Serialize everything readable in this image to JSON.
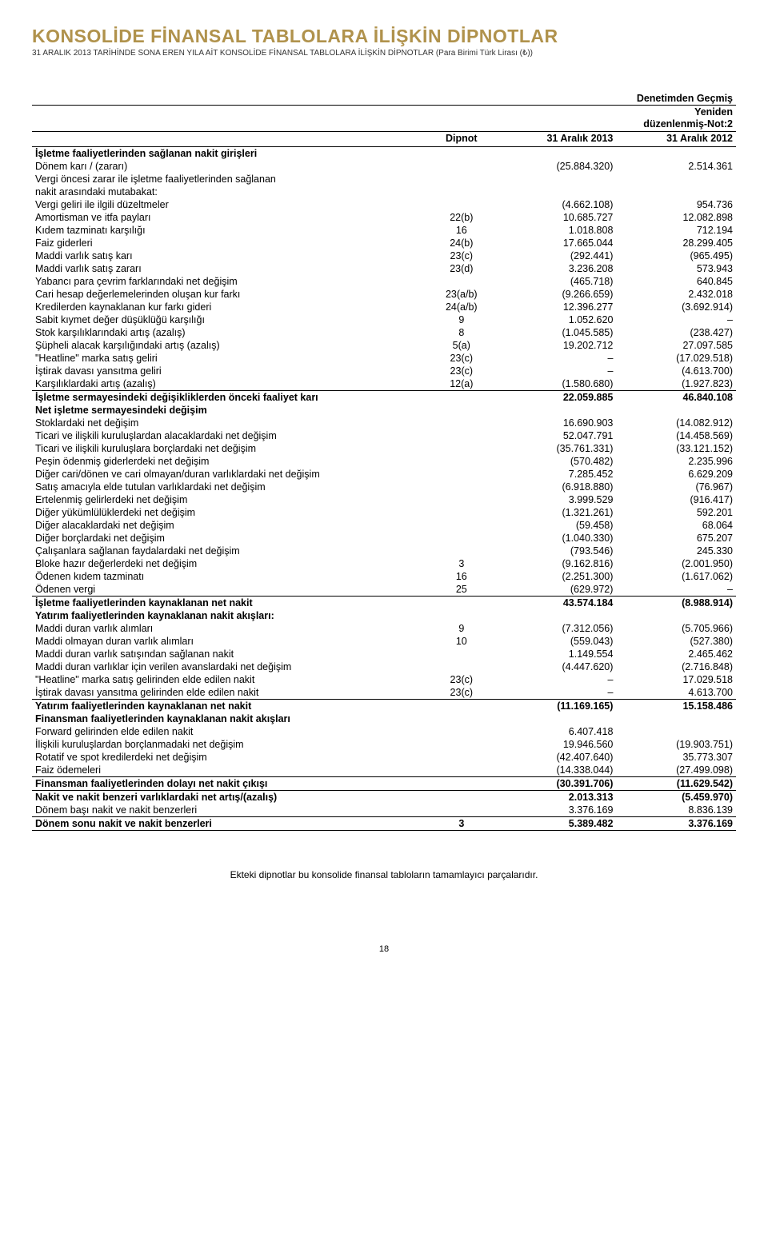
{
  "header": {
    "title": "KONSOLİDE FİNANSAL TABLOLARA İLİŞKİN DİPNOTLAR",
    "subtitle": "31 ARALIK 2013 TARİHİNDE SONA EREN YILA AİT KONSOLİDE FİNANSAL TABLOLARA İLİŞKİN DİPNOTLAR (Para Birimi Türk Lirası (₺))"
  },
  "columns": {
    "audit": "Denetimden Geçmiş",
    "restated": "Yeniden\ndüzenlenmiş-Not:2",
    "note": "Dipnot",
    "y2013": "31 Aralık 2013",
    "y2012": "31 Aralık 2012"
  },
  "rows": [
    {
      "label": "İşletme faaliyetlerinden sağlanan nakit girişleri",
      "section": true
    },
    {
      "label": "Dönem karı / (zararı)",
      "note": "",
      "v1": "(25.884.320)",
      "v2": "2.514.361"
    },
    {
      "label": "Vergi öncesi zarar ile işletme faaliyetlerinden sağlanan",
      "note": "",
      "v1": "",
      "v2": ""
    },
    {
      "label": "nakit arasındaki mutabakat:",
      "note": "",
      "v1": "",
      "v2": ""
    },
    {
      "label": "Vergi geliri ile ilgili düzeltmeler",
      "note": "",
      "v1": "(4.662.108)",
      "v2": "954.736"
    },
    {
      "label": "Amortisman ve itfa payları",
      "note": "22(b)",
      "v1": "10.685.727",
      "v2": "12.082.898"
    },
    {
      "label": "Kıdem tazminatı karşılığı",
      "note": "16",
      "v1": "1.018.808",
      "v2": "712.194"
    },
    {
      "label": "Faiz giderleri",
      "note": "24(b)",
      "v1": "17.665.044",
      "v2": "28.299.405"
    },
    {
      "label": "Maddi varlık satış karı",
      "note": "23(c)",
      "v1": "(292.441)",
      "v2": "(965.495)"
    },
    {
      "label": "Maddi varlık satış zararı",
      "note": "23(d)",
      "v1": "3.236.208",
      "v2": "573.943"
    },
    {
      "label": "Yabancı para çevrim farklarındaki net değişim",
      "note": "",
      "v1": "(465.718)",
      "v2": "640.845"
    },
    {
      "label": "Cari hesap değerlemelerinden oluşan kur farkı",
      "note": "23(a/b)",
      "v1": "(9.266.659)",
      "v2": "2.432.018"
    },
    {
      "label": "Kredilerden kaynaklanan kur farkı gideri",
      "note": "24(a/b)",
      "v1": "12.396.277",
      "v2": "(3.692.914)"
    },
    {
      "label": "Sabit kıymet değer düşüklüğü karşılığı",
      "note": "9",
      "v1": "1.052.620",
      "v2": "–"
    },
    {
      "label": "Stok karşılıklarındaki artış (azalış)",
      "note": "8",
      "v1": "(1.045.585)",
      "v2": "(238.427)"
    },
    {
      "label": "Şüpheli alacak karşılığındaki artış (azalış)",
      "note": "5(a)",
      "v1": "19.202.712",
      "v2": "27.097.585"
    },
    {
      "label": "\"Heatline\" marka satış geliri",
      "note": "23(c)",
      "v1": "–",
      "v2": "(17.029.518)"
    },
    {
      "label": "İştirak davası yansıtma geliri",
      "note": "23(c)",
      "v1": "–",
      "v2": "(4.613.700)"
    },
    {
      "label": "Karşılıklardaki artış (azalış)",
      "note": "12(a)",
      "v1": "(1.580.680)",
      "v2": "(1.927.823)"
    },
    {
      "label": "İşletme sermayesindeki değişikliklerden önceki faaliyet karı",
      "subtotal": true,
      "v1": "22.059.885",
      "v2": "46.840.108"
    },
    {
      "label": "Net işletme sermayesindeki değişim",
      "section": true
    },
    {
      "label": "Stoklardaki net değişim",
      "note": "",
      "v1": "16.690.903",
      "v2": "(14.082.912)"
    },
    {
      "label": "Ticari ve ilişkili kuruluşlardan alacaklardaki net değişim",
      "note": "",
      "v1": "52.047.791",
      "v2": "(14.458.569)"
    },
    {
      "label": "Ticari ve ilişkili kuruluşlara borçlardaki net değişim",
      "note": "",
      "v1": "(35.761.331)",
      "v2": "(33.121.152)"
    },
    {
      "label": "Peşin ödenmiş giderlerdeki net değişim",
      "note": "",
      "v1": "(570.482)",
      "v2": "2.235.996"
    },
    {
      "label": "Diğer cari/dönen ve cari olmayan/duran varlıklardaki net değişim",
      "note": "",
      "v1": "7.285.452",
      "v2": "6.629.209"
    },
    {
      "label": "Satış amacıyla elde tutulan varlıklardaki net değişim",
      "note": "",
      "v1": "(6.918.880)",
      "v2": "(76.967)"
    },
    {
      "label": "Ertelenmiş gelirlerdeki net değişim",
      "note": "",
      "v1": "3.999.529",
      "v2": "(916.417)"
    },
    {
      "label": "Diğer yükümlülüklerdeki net değişim",
      "note": "",
      "v1": "(1.321.261)",
      "v2": "592.201"
    },
    {
      "label": "Diğer alacaklardaki net değişim",
      "note": "",
      "v1": "(59.458)",
      "v2": "68.064"
    },
    {
      "label": "Diğer borçlardaki net değişim",
      "note": "",
      "v1": "(1.040.330)",
      "v2": "675.207"
    },
    {
      "label": "Çalışanlara sağlanan faydalardaki net değişim",
      "note": "",
      "v1": "(793.546)",
      "v2": "245.330"
    },
    {
      "label": "Bloke hazır değerlerdeki net değişim",
      "note": "3",
      "v1": "(9.162.816)",
      "v2": "(2.001.950)"
    },
    {
      "label": "Ödenen kıdem tazminatı",
      "note": "16",
      "v1": "(2.251.300)",
      "v2": "(1.617.062)"
    },
    {
      "label": "Ödenen vergi",
      "note": "25",
      "v1": "(629.972)",
      "v2": "–"
    },
    {
      "label": "İşletme faaliyetlerinden kaynaklanan net nakit",
      "subtotal": true,
      "v1": "43.574.184",
      "v2": "(8.988.914)"
    },
    {
      "label": "Yatırım faaliyetlerinden kaynaklanan nakit akışları:",
      "section": true
    },
    {
      "label": "Maddi duran varlık alımları",
      "note": "9",
      "v1": "(7.312.056)",
      "v2": "(5.705.966)"
    },
    {
      "label": "Maddi olmayan duran varlık alımları",
      "note": "10",
      "v1": "(559.043)",
      "v2": "(527.380)"
    },
    {
      "label": "Maddi duran varlık satışından sağlanan nakit",
      "note": "",
      "v1": "1.149.554",
      "v2": "2.465.462"
    },
    {
      "label": "Maddi duran varlıklar için verilen avanslardaki net değişim",
      "note": "",
      "v1": "(4.447.620)",
      "v2": "(2.716.848)"
    },
    {
      "label": "\"Heatline\" marka satış gelirinden elde edilen nakit",
      "note": "23(c)",
      "v1": "–",
      "v2": "17.029.518"
    },
    {
      "label": "İştirak davası yansıtma gelirinden elde edilen nakit",
      "note": "23(c)",
      "v1": "–",
      "v2": "4.613.700"
    },
    {
      "label": "Yatırım faaliyetlerinden kaynaklanan net nakit",
      "subtotal": true,
      "v1": "(11.169.165)",
      "v2": "15.158.486"
    },
    {
      "label": "Finansman faaliyetlerinden kaynaklanan nakit akışları",
      "section": true
    },
    {
      "label": "Forward gelirinden elde edilen nakit",
      "note": "",
      "v1": "6.407.418",
      "v2": ""
    },
    {
      "label": "İlişkili kuruluşlardan borçlanmadaki net değişim",
      "note": "",
      "v1": "19.946.560",
      "v2": "(19.903.751)"
    },
    {
      "label": "Rotatif ve spot kredilerdeki net değişim",
      "note": "",
      "v1": "(42.407.640)",
      "v2": "35.773.307"
    },
    {
      "label": "Faiz ödemeleri",
      "note": "",
      "v1": "(14.338.044)",
      "v2": "(27.499.098)"
    },
    {
      "label": "Finansman faaliyetlerinden dolayı net nakit çıkışı",
      "subtotal": true,
      "v1": "(30.391.706)",
      "v2": "(11.629.542)"
    },
    {
      "label": "Nakit ve nakit benzeri varlıklardaki net artış/(azalış)",
      "subtotal": true,
      "v1": "2.013.313",
      "v2": "(5.459.970)"
    },
    {
      "label": "Dönem başı nakit ve nakit benzerleri",
      "note": "",
      "v1": "3.376.169",
      "v2": "8.836.139"
    },
    {
      "label": "Dönem sonu nakit ve nakit benzerleri",
      "note": "3",
      "total": true,
      "v1": "5.389.482",
      "v2": "3.376.169"
    }
  ],
  "footnote": "Ekteki dipnotlar bu konsolide finansal tabloların tamamlayıcı parçalarıdır.",
  "page": "18",
  "style": {
    "title_color": "#b0924c",
    "text_color": "#000000",
    "background": "#ffffff",
    "font_size_body": "12.5",
    "font_size_title": "23"
  }
}
